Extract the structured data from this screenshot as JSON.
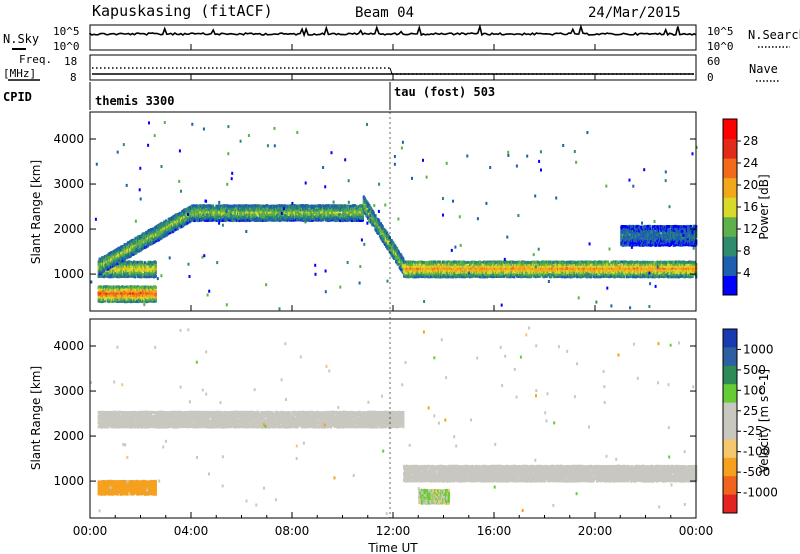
{
  "header": {
    "station": "Kapuskasing (fitACF)",
    "beam": "Beam 04",
    "date": "24/Mar/2015"
  },
  "noise_panel": {
    "left_label": "N.Sky",
    "right_label": "N.Search",
    "tick_top": "10^5",
    "tick_bottom": "10^0",
    "right_tick_top": "10^5",
    "right_tick_bottom": "10^0"
  },
  "freq_panel": {
    "left_label": "Freq.",
    "left_unit": "[MHz]",
    "left_ticks": [
      "18",
      "8"
    ],
    "right_label": "Nave",
    "right_ticks": [
      "60",
      "0"
    ],
    "cpid_label": "CPID"
  },
  "cpid_segments": [
    {
      "label": "themis 3300"
    },
    {
      "label": "tau (fost) 503"
    }
  ],
  "colors": {
    "power_scale": [
      "#0000ff",
      "#1f5fb0",
      "#2e8b6e",
      "#5fb04a",
      "#d9d92a",
      "#f2a81a",
      "#f26a1a",
      "#e32a1a",
      "#ff0000"
    ],
    "velocity_scale": [
      "#e32222",
      "#f0641e",
      "#f5a01e",
      "#f5c86e",
      "#c8c8c0",
      "#c8c8c0",
      "#66cc33",
      "#2e8b57",
      "#2e5fa0",
      "#1a3ab0"
    ],
    "ground_scatter": "#c8c8c0"
  },
  "chart_data": [
    {
      "type": "heatmap",
      "title": "",
      "xlabel": "Time UT",
      "ylabel": "Slant Range [km]",
      "x_ticks": [
        "00:00",
        "04:00",
        "08:00",
        "12:00",
        "16:00",
        "20:00",
        "00:00"
      ],
      "x_range_hours": [
        0,
        24
      ],
      "y_ticks": [
        1000,
        2000,
        3000,
        4000
      ],
      "ylim": [
        180,
        4600
      ],
      "colorbar": {
        "label": "Power [dB]",
        "ticks": [
          4,
          8,
          12,
          16,
          20,
          24,
          28
        ],
        "range": [
          0,
          32
        ]
      },
      "features": [
        {
          "name": "near band",
          "t_start": 0.3,
          "t_end": 2.6,
          "range_km": 600,
          "peak_power_db": 28
        },
        {
          "name": "mid band",
          "t_start": 0.3,
          "t_end": 2.6,
          "range_km": 1150,
          "peak_power_db": 20
        },
        {
          "name": "rising band",
          "t_start": 0.3,
          "t_end": 4.0,
          "range_km_start": 1200,
          "range_km_end": 2400,
          "peak_power_db": 16
        },
        {
          "name": "upper band",
          "t_start": 4.0,
          "t_end": 10.8,
          "range_km": 2400,
          "peak_power_db": 16
        },
        {
          "name": "falling band",
          "t_start": 10.8,
          "t_end": 12.4,
          "range_km_start": 2600,
          "range_km_end": 1200,
          "peak_power_db": 16
        },
        {
          "name": "lower band",
          "t_start": 12.4,
          "t_end": 24.0,
          "range_km": 1150,
          "peak_power_db": 24
        },
        {
          "name": "high-range patch",
          "t_start": 21.0,
          "t_end": 24.0,
          "range_km": 1900,
          "peak_power_db": 8
        }
      ],
      "grid": false
    },
    {
      "type": "heatmap",
      "title": "",
      "xlabel": "Time UT",
      "ylabel": "Slant Range [km]",
      "x_ticks": [
        "00:00",
        "04:00",
        "08:00",
        "12:00",
        "16:00",
        "20:00",
        "00:00"
      ],
      "x_range_hours": [
        0,
        24
      ],
      "y_ticks": [
        1000,
        2000,
        3000,
        4000
      ],
      "ylim": [
        180,
        4600
      ],
      "colorbar": {
        "label": "Velocity [m s^-1]",
        "ticks": [
          1000,
          500,
          100,
          25,
          -25,
          -100,
          -500,
          -1000
        ]
      },
      "features": [
        {
          "name": "ground scatter upper",
          "t_start": 0.3,
          "t_end": 12.4,
          "range_km": 2400,
          "velocity": "ground"
        },
        {
          "name": "ground scatter lower",
          "t_start": 12.4,
          "t_end": 24.0,
          "range_km": 1200,
          "velocity": "ground"
        },
        {
          "name": "negative velocity patch",
          "t_start": 0.3,
          "t_end": 2.6,
          "range_km": 900,
          "velocity_ms": -300
        },
        {
          "name": "positive velocity patch",
          "t_start": 13.0,
          "t_end": 14.2,
          "range_km": 700,
          "velocity_ms": 100
        }
      ],
      "grid": false
    }
  ]
}
